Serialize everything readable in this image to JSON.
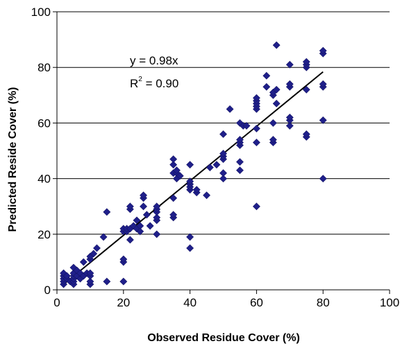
{
  "chart_data": {
    "type": "scatter",
    "xlabel": "Observed Residue Cover (%)",
    "ylabel": "Predicted Reside Cover (%)",
    "xlim": [
      0,
      100
    ],
    "ylim": [
      0,
      100
    ],
    "x_ticks": [
      "0",
      "20",
      "40",
      "60",
      "80",
      "100"
    ],
    "y_ticks": [
      "0",
      "20",
      "40",
      "60",
      "80",
      "100"
    ],
    "grid": "horizontal",
    "marker": "diamond",
    "marker_color": "#1f1f8a",
    "annotation": {
      "equation": "y = 0.98x",
      "r2_prefix": "R",
      "r2_exp": "2",
      "r2_value": " = 0.90"
    },
    "trendline": {
      "slope": 0.98,
      "x_range": [
        2,
        80
      ]
    },
    "series": [
      {
        "points": [
          [
            2,
            2
          ],
          [
            2,
            3
          ],
          [
            2,
            4
          ],
          [
            2,
            5
          ],
          [
            2,
            6
          ],
          [
            3,
            4
          ],
          [
            3,
            5
          ],
          [
            4,
            3
          ],
          [
            5,
            2
          ],
          [
            5,
            3
          ],
          [
            5,
            4
          ],
          [
            5,
            5
          ],
          [
            5,
            6
          ],
          [
            5,
            8
          ],
          [
            6,
            5
          ],
          [
            6,
            7
          ],
          [
            7,
            4
          ],
          [
            7,
            6
          ],
          [
            8,
            5
          ],
          [
            8,
            10
          ],
          [
            9,
            6
          ],
          [
            10,
            2
          ],
          [
            10,
            3
          ],
          [
            10,
            5
          ],
          [
            10,
            6
          ],
          [
            10,
            11
          ],
          [
            10,
            12
          ],
          [
            11,
            13
          ],
          [
            12,
            15
          ],
          [
            14,
            19
          ],
          [
            15,
            3
          ],
          [
            15,
            28
          ],
          [
            20,
            3
          ],
          [
            20,
            10
          ],
          [
            20,
            11
          ],
          [
            20,
            21
          ],
          [
            20,
            22
          ],
          [
            21,
            21
          ],
          [
            21,
            22
          ],
          [
            22,
            22
          ],
          [
            22,
            29
          ],
          [
            22,
            30
          ],
          [
            22,
            18
          ],
          [
            23,
            23
          ],
          [
            24,
            22
          ],
          [
            24,
            25
          ],
          [
            25,
            23
          ],
          [
            25,
            21
          ],
          [
            26,
            30
          ],
          [
            26,
            33
          ],
          [
            26,
            34
          ],
          [
            27,
            27
          ],
          [
            28,
            23
          ],
          [
            30,
            20
          ],
          [
            30,
            25
          ],
          [
            30,
            26
          ],
          [
            30,
            28
          ],
          [
            30,
            29
          ],
          [
            30,
            30
          ],
          [
            35,
            26
          ],
          [
            35,
            27
          ],
          [
            35,
            33
          ],
          [
            35,
            42
          ],
          [
            35,
            45
          ],
          [
            35,
            47
          ],
          [
            36,
            42
          ],
          [
            36,
            43
          ],
          [
            36,
            40
          ],
          [
            37,
            41
          ],
          [
            40,
            15
          ],
          [
            40,
            19
          ],
          [
            40,
            36
          ],
          [
            40,
            37
          ],
          [
            40,
            38
          ],
          [
            40,
            39
          ],
          [
            40,
            45
          ],
          [
            42,
            35
          ],
          [
            42,
            36
          ],
          [
            45,
            34
          ],
          [
            46,
            44
          ],
          [
            48,
            45
          ],
          [
            50,
            40
          ],
          [
            50,
            42
          ],
          [
            50,
            47
          ],
          [
            50,
            48
          ],
          [
            50,
            49
          ],
          [
            50,
            56
          ],
          [
            52,
            65
          ],
          [
            55,
            43
          ],
          [
            55,
            46
          ],
          [
            55,
            52
          ],
          [
            55,
            53
          ],
          [
            55,
            54
          ],
          [
            55,
            60
          ],
          [
            56,
            59
          ],
          [
            57,
            59
          ],
          [
            60,
            30
          ],
          [
            60,
            53
          ],
          [
            60,
            58
          ],
          [
            60,
            65
          ],
          [
            60,
            66
          ],
          [
            60,
            67
          ],
          [
            60,
            68
          ],
          [
            60,
            69
          ],
          [
            63,
            73
          ],
          [
            63,
            77
          ],
          [
            65,
            53
          ],
          [
            65,
            54
          ],
          [
            65,
            60
          ],
          [
            65,
            70
          ],
          [
            65,
            71
          ],
          [
            66,
            67
          ],
          [
            66,
            72
          ],
          [
            66,
            88
          ],
          [
            70,
            59
          ],
          [
            70,
            61
          ],
          [
            70,
            62
          ],
          [
            70,
            73
          ],
          [
            70,
            74
          ],
          [
            70,
            81
          ],
          [
            75,
            55
          ],
          [
            75,
            56
          ],
          [
            75,
            72
          ],
          [
            75,
            80
          ],
          [
            75,
            81
          ],
          [
            75,
            82
          ],
          [
            80,
            40
          ],
          [
            80,
            61
          ],
          [
            80,
            73
          ],
          [
            80,
            74
          ],
          [
            80,
            85
          ],
          [
            80,
            86
          ]
        ]
      }
    ]
  }
}
